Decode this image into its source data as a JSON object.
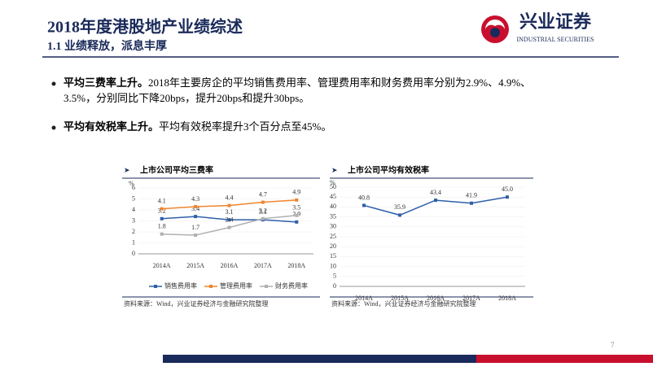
{
  "header": {
    "title": "2018年度港股地产业绩综述",
    "subtitle": "1.1 业绩释放，派息丰厚",
    "logo": "兴业证券",
    "logo_en": "INDUSTRIAL SECURITIES"
  },
  "bullets": [
    {
      "bold": "平均三费率上升。",
      "text": "2018年主要房企的平均销售费用率、管理费用率和财务费用率分别为2.9%、4.9%、3.5%，分别同比下降20bps，提升20bps和提升30bps。"
    },
    {
      "bold": "平均有效税率上升。",
      "text": "平均有效税率提升3个百分点至45%。"
    }
  ],
  "page_number": "7",
  "chart_data": [
    {
      "type": "line",
      "title": "上市公司平均三费率",
      "y_unit": "%",
      "source": "资料来源：Wind，兴业证券经济与金融研究院整理",
      "categories": [
        "2014A",
        "2015A",
        "2016A",
        "2017A",
        "2018A"
      ],
      "series": [
        {
          "name": "销售费用率",
          "color": "#2e5fa8",
          "values": [
            3.2,
            3.4,
            3.1,
            3.1,
            2.9
          ]
        },
        {
          "name": "管理费用率",
          "color": "#f0852d",
          "values": [
            4.1,
            4.3,
            4.4,
            4.7,
            4.9
          ]
        },
        {
          "name": "财务费用率",
          "color": "#b0b0b0",
          "values": [
            1.8,
            1.7,
            2.4,
            3.2,
            3.5
          ]
        }
      ],
      "ylim": [
        0,
        6
      ],
      "yticks": [
        0,
        1,
        2,
        3,
        4,
        5,
        6
      ]
    },
    {
      "type": "line",
      "title": "上市公司平均有效税率",
      "y_unit": "%",
      "source": "资料来源：Wind，兴业证券经济与金融研究院整理",
      "categories": [
        "2014A",
        "2015A",
        "2016A",
        "2017A",
        "2018A"
      ],
      "values": [
        40.8,
        35.9,
        43.4,
        41.9,
        45.0
      ],
      "value_labels": [
        "40.8",
        "35.9",
        "43.4",
        "41.9",
        "45.0"
      ],
      "color": "#2e5fa8",
      "ylim": [
        0,
        50
      ],
      "yticks": [
        0,
        5,
        10,
        15,
        20,
        25,
        30,
        35,
        40,
        45,
        50
      ]
    }
  ]
}
